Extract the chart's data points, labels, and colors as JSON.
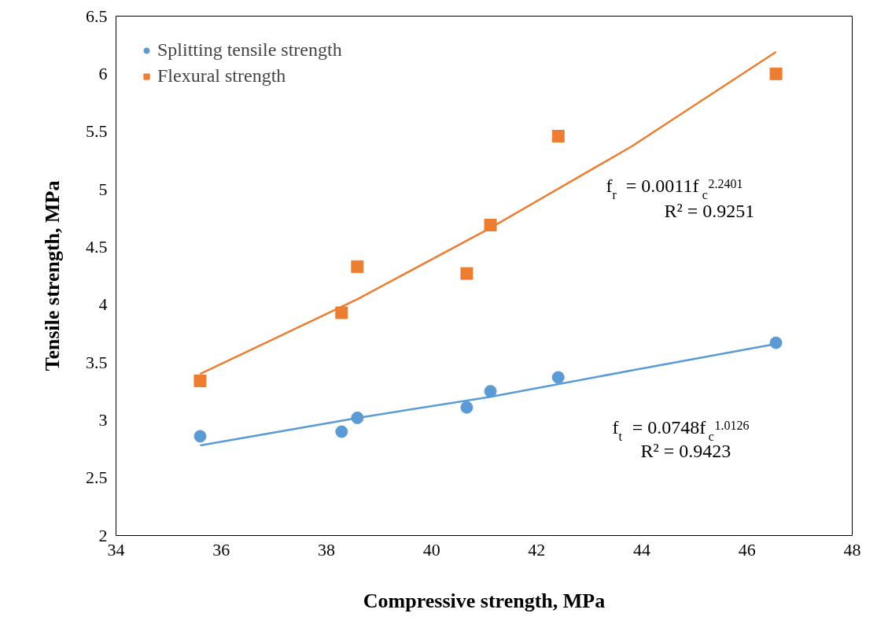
{
  "chart_data": {
    "type": "scatter",
    "xlabel": "Compressive strength, MPa",
    "ylabel": "Tensile strength, MPa",
    "xlim": [
      34,
      48
    ],
    "xticks": [
      34,
      36,
      38,
      40,
      42,
      44,
      46,
      48
    ],
    "ylim": [
      2,
      6.5
    ],
    "yticks": [
      2,
      2.5,
      3,
      3.5,
      4,
      4.5,
      5,
      5.5,
      6,
      6.5
    ],
    "grid": false,
    "legend": "top left",
    "series": [
      {
        "name": "Splitting tensile strength",
        "color": "#5b9bd5",
        "marker": "circle",
        "x": [
          35.6,
          38.29,
          38.59,
          40.67,
          41.12,
          42.41,
          46.55
        ],
        "values": [
          2.86,
          2.9,
          3.02,
          3.11,
          3.25,
          3.37,
          3.67
        ]
      },
      {
        "name": "Flexural strength",
        "color": "#ed7d31",
        "marker": "square",
        "x": [
          35.6,
          38.29,
          38.59,
          40.67,
          41.12,
          42.41,
          46.55
        ],
        "values": [
          3.34,
          3.93,
          4.33,
          4.27,
          4.69,
          5.46,
          6.0
        ]
      },
      {
        "type": "line",
        "color": "#5b9bd5",
        "x": [
          35.6,
          38.6,
          41.1,
          43.8,
          46.55
        ],
        "values": [
          2.78,
          3.02,
          3.2,
          3.43,
          3.66
        ]
      },
      {
        "type": "line",
        "color": "#ed7d31",
        "x": [
          35.6,
          38.6,
          41.1,
          43.8,
          46.55
        ],
        "values": [
          3.4,
          4.05,
          4.66,
          5.37,
          6.19
        ]
      }
    ],
    "annotations": [
      "f$_{r}$ = 0.0011f$_{c}$$^{2.2401}$",
      "R² = 0.9251",
      "f$_{t}$ = 0.0748f$_{c}$$^{1.0126}$",
      "R² = 0.9423"
    ]
  }
}
